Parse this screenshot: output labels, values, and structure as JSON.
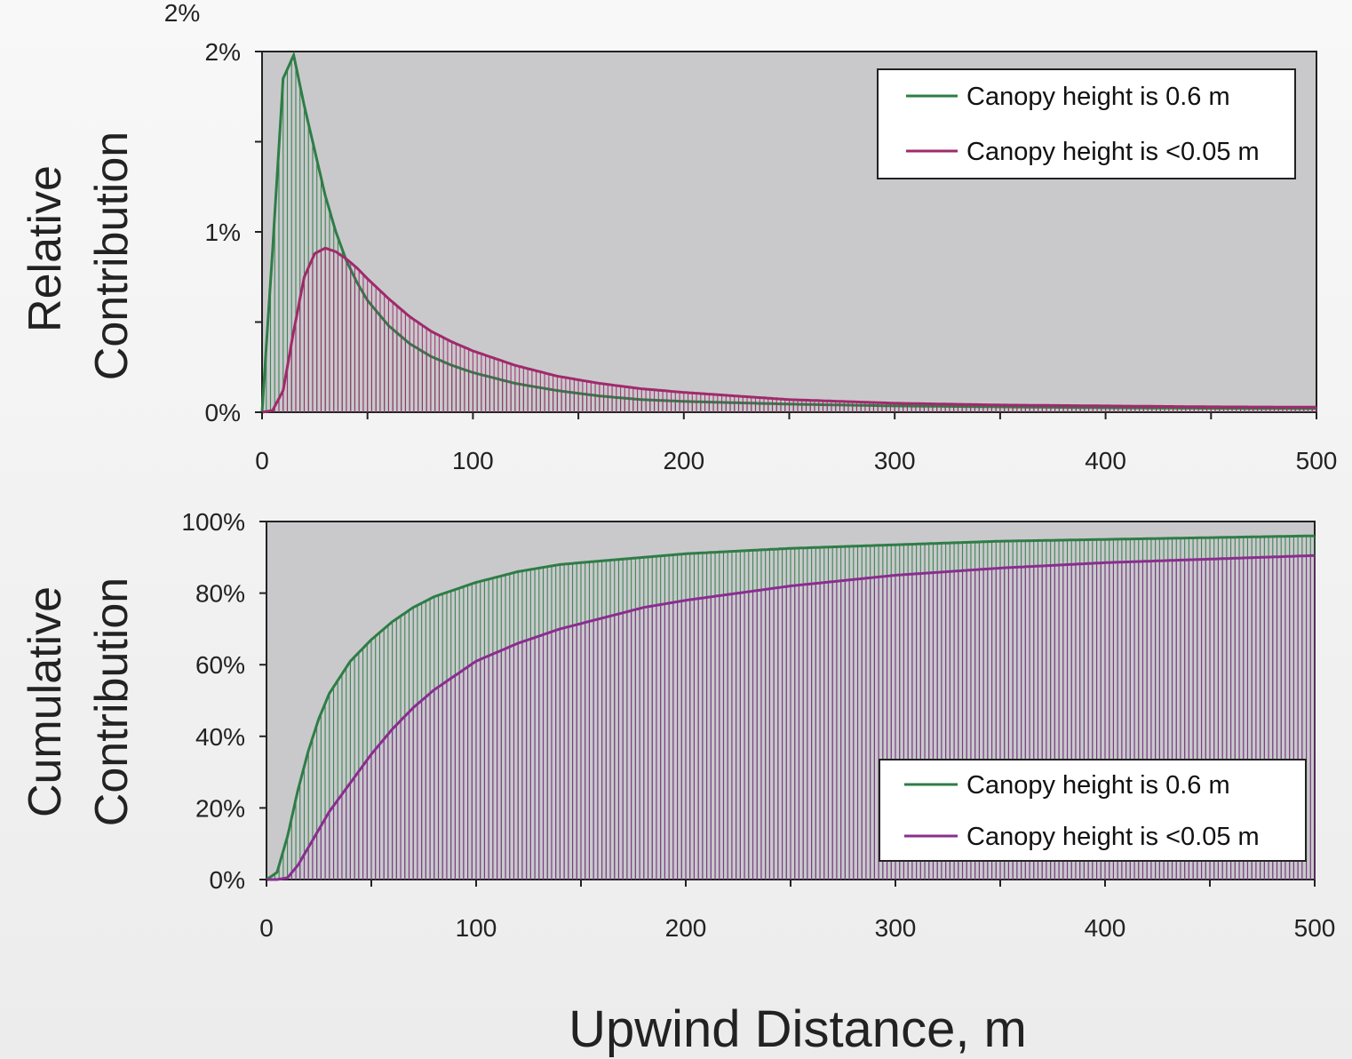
{
  "chart_data": [
    {
      "type": "bar",
      "ylabel_line1": "Relative",
      "ylabel_line2": "Contribution",
      "xlim": [
        0,
        500
      ],
      "ylim": [
        0,
        2
      ],
      "y_unit": "%",
      "x_ticks": [
        "0",
        "100",
        "200",
        "300",
        "400",
        "500"
      ],
      "y_ticks": [
        "0%",
        "1%",
        "2%"
      ],
      "clipped_top_label": "2%",
      "legend_position": "top-right",
      "legend": [
        "Canopy height is 0.6 m",
        "Canopy height is <0.05 m"
      ],
      "series": [
        {
          "name": "Canopy height is 0.6 m",
          "color": "#2e7d46",
          "x": [
            0,
            5,
            10,
            15,
            20,
            25,
            30,
            35,
            40,
            45,
            50,
            60,
            70,
            80,
            90,
            100,
            120,
            140,
            160,
            180,
            200,
            250,
            300,
            350,
            400,
            450,
            500
          ],
          "y": [
            0,
            0.9,
            1.85,
            1.98,
            1.7,
            1.45,
            1.2,
            1.0,
            0.84,
            0.72,
            0.62,
            0.48,
            0.38,
            0.31,
            0.26,
            0.22,
            0.16,
            0.12,
            0.09,
            0.07,
            0.06,
            0.045,
            0.035,
            0.03,
            0.025,
            0.022,
            0.02
          ]
        },
        {
          "name": "Canopy height is <0.05 m",
          "color": "#a02a6b",
          "x": [
            0,
            5,
            10,
            15,
            20,
            25,
            30,
            35,
            40,
            45,
            50,
            60,
            70,
            80,
            90,
            100,
            120,
            140,
            160,
            180,
            200,
            250,
            300,
            350,
            400,
            450,
            500
          ],
          "y": [
            0,
            0.01,
            0.12,
            0.45,
            0.75,
            0.88,
            0.91,
            0.89,
            0.85,
            0.8,
            0.74,
            0.63,
            0.53,
            0.45,
            0.39,
            0.34,
            0.26,
            0.2,
            0.16,
            0.13,
            0.11,
            0.07,
            0.05,
            0.04,
            0.035,
            0.03,
            0.028
          ]
        }
      ]
    },
    {
      "type": "bar",
      "ylabel_line1": "Cumulative",
      "ylabel_line2": "Contribution",
      "xlabel": "Upwind Distance, m",
      "xlim": [
        0,
        500
      ],
      "ylim": [
        0,
        100
      ],
      "y_unit": "%",
      "x_ticks": [
        "0",
        "100",
        "200",
        "300",
        "400",
        "500"
      ],
      "y_ticks": [
        "0%",
        "20%",
        "40%",
        "60%",
        "80%",
        "100%"
      ],
      "legend_position": "bottom-right",
      "legend": [
        "Canopy height is 0.6 m",
        "Canopy height is <0.05 m"
      ],
      "series": [
        {
          "name": "Canopy height is 0.6 m",
          "color": "#2e7d46",
          "x": [
            0,
            5,
            10,
            15,
            20,
            25,
            30,
            40,
            50,
            60,
            70,
            80,
            90,
            100,
            120,
            140,
            160,
            180,
            200,
            250,
            300,
            350,
            400,
            450,
            500
          ],
          "y": [
            0,
            2,
            12,
            25,
            36,
            45,
            52,
            61,
            67,
            72,
            76,
            79,
            81,
            83,
            86,
            88,
            89,
            90,
            91,
            92.5,
            93.5,
            94.5,
            95,
            95.5,
            96
          ]
        },
        {
          "name": "Canopy height is <0.05 m",
          "color": "#8a2d8f",
          "x": [
            0,
            5,
            10,
            15,
            20,
            25,
            30,
            40,
            50,
            60,
            70,
            80,
            90,
            100,
            120,
            140,
            160,
            180,
            200,
            250,
            300,
            350,
            400,
            450,
            500
          ],
          "y": [
            0,
            0,
            0.5,
            4,
            9,
            14,
            19,
            27,
            35,
            42,
            48,
            53,
            57,
            61,
            66,
            70,
            73,
            76,
            78,
            82,
            85,
            87,
            88.5,
            89.5,
            90.5
          ]
        }
      ]
    }
  ]
}
